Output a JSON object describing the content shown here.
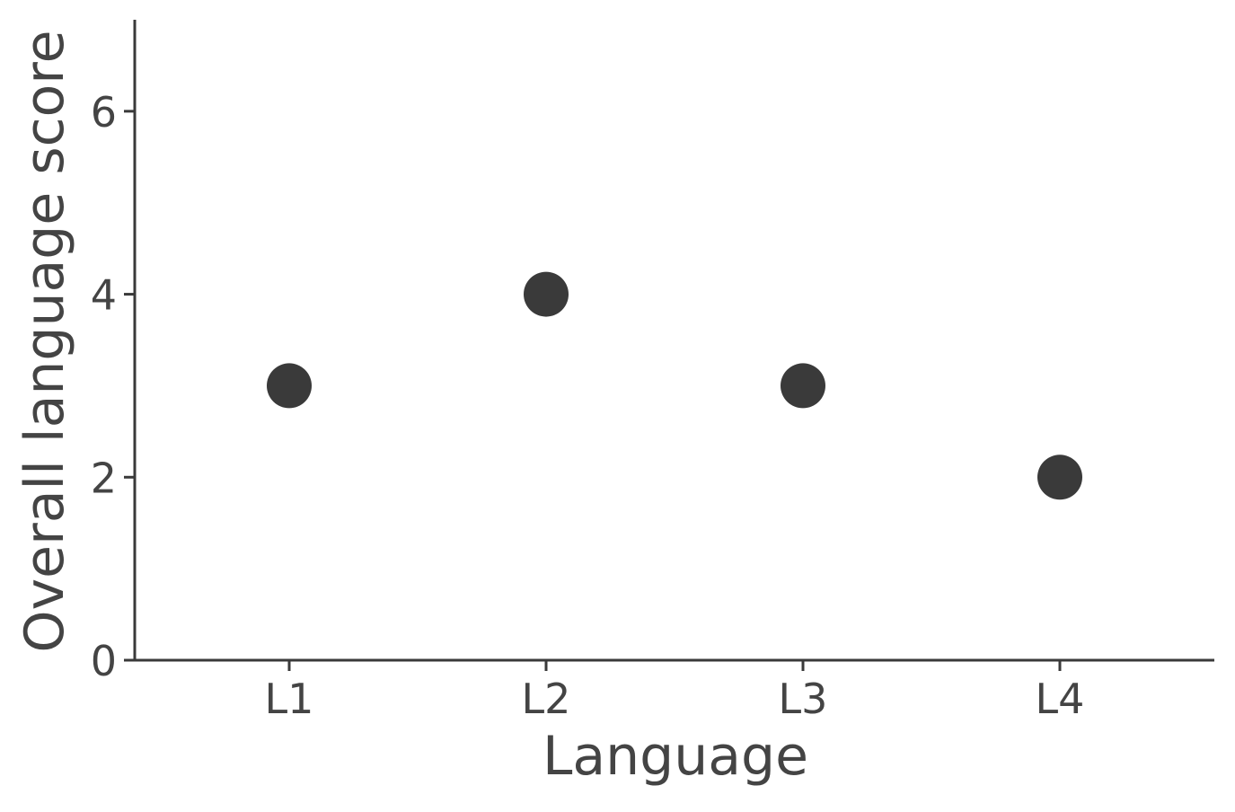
{
  "chart_data": {
    "type": "scatter",
    "categories": [
      "L1",
      "L2",
      "L3",
      "L4"
    ],
    "values": [
      3,
      4,
      3,
      2
    ],
    "xlabel": "Language",
    "ylabel": "Overall language score",
    "ylim": [
      0,
      7
    ],
    "yticks": [
      0,
      2,
      4,
      6
    ],
    "grid": false,
    "legend": "none",
    "colors": {
      "point": "#3a3a3a",
      "axis": "#3a3a3a",
      "text": "#444444"
    }
  }
}
